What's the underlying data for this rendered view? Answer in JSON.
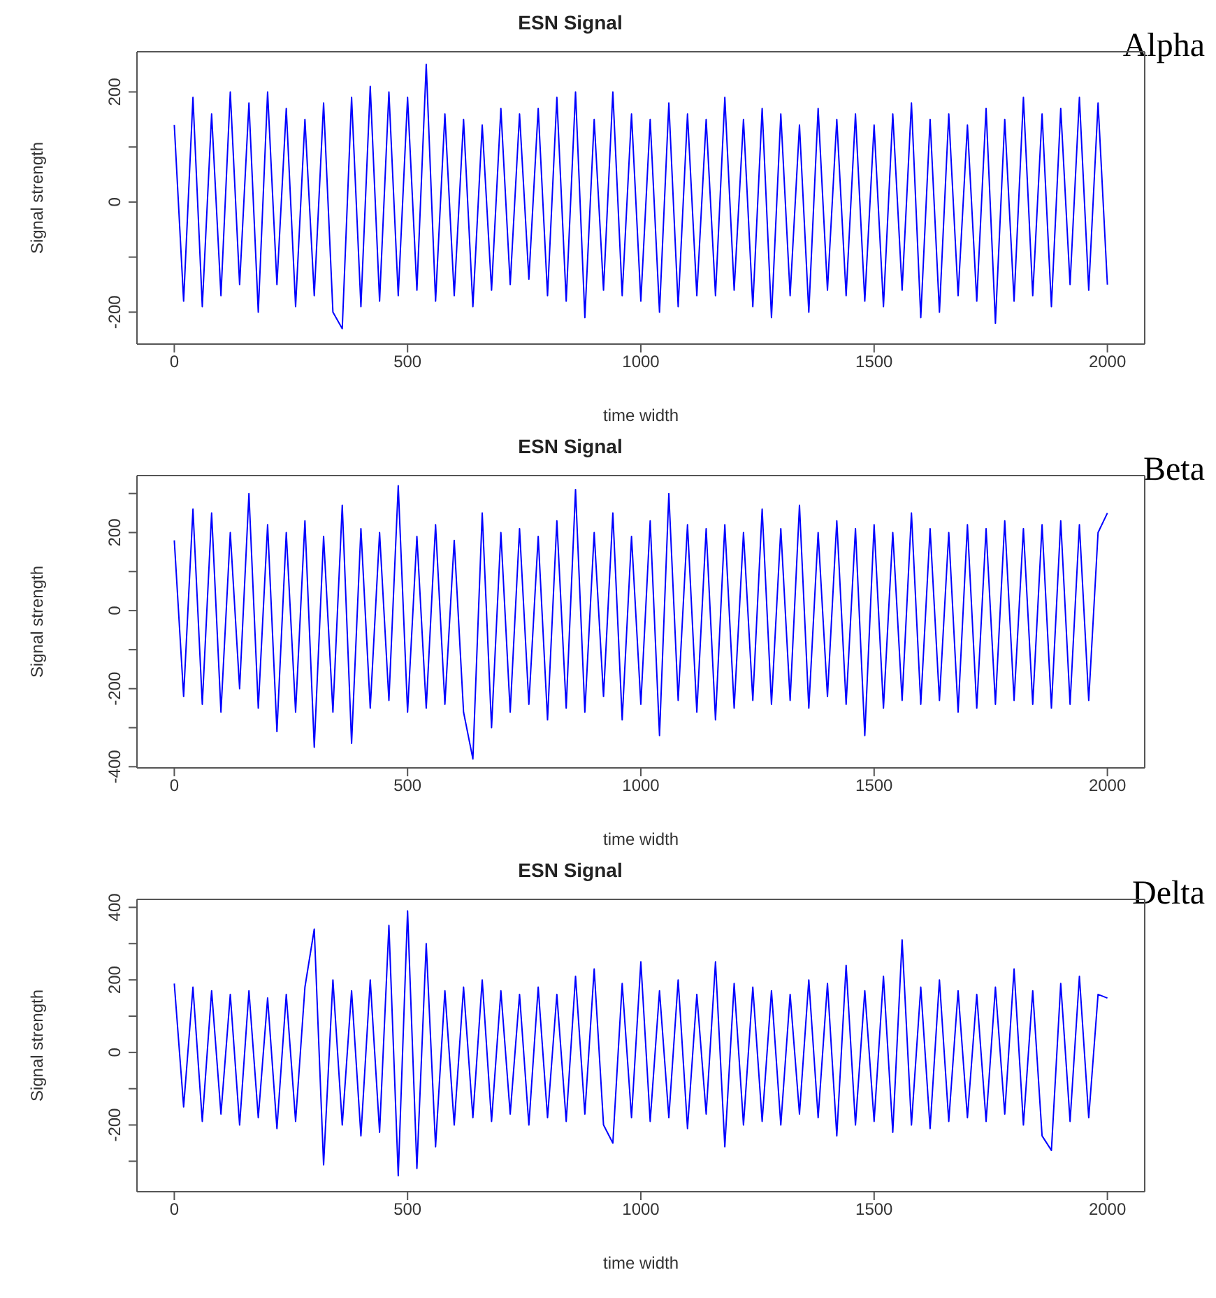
{
  "chart_data": [
    {
      "type": "line",
      "title": "ESN Signal",
      "xlabel": "time width",
      "ylabel": "Signal strength",
      "annotations": [
        "Alpha"
      ],
      "color": "#0000ff",
      "xlim": [
        -80,
        2080
      ],
      "ylim": [
        -258,
        273
      ],
      "xticks": [
        0,
        500,
        1000,
        1500,
        2000
      ],
      "yticks": [
        -200,
        {
          "value": -100,
          "label": null
        },
        0,
        {
          "value": 100,
          "label": null
        },
        200
      ],
      "x": [
        0,
        20,
        40,
        60,
        80,
        100,
        120,
        140,
        160,
        180,
        200,
        220,
        240,
        260,
        280,
        300,
        320,
        340,
        360,
        380,
        400,
        420,
        440,
        460,
        480,
        500,
        520,
        540,
        560,
        580,
        600,
        620,
        640,
        660,
        680,
        700,
        720,
        740,
        760,
        780,
        800,
        820,
        840,
        860,
        880,
        900,
        920,
        940,
        960,
        980,
        1000,
        1020,
        1040,
        1060,
        1080,
        1100,
        1120,
        1140,
        1160,
        1180,
        1200,
        1220,
        1240,
        1260,
        1280,
        1300,
        1320,
        1340,
        1360,
        1380,
        1400,
        1420,
        1440,
        1460,
        1480,
        1500,
        1520,
        1540,
        1560,
        1580,
        1600,
        1620,
        1640,
        1660,
        1680,
        1700,
        1720,
        1740,
        1760,
        1780,
        1800,
        1820,
        1840,
        1860,
        1880,
        1900,
        1920,
        1940,
        1960,
        1980,
        2000
      ],
      "values": [
        140,
        -180,
        190,
        -190,
        160,
        -170,
        200,
        -150,
        180,
        -200,
        200,
        -150,
        170,
        -190,
        150,
        -170,
        180,
        -200,
        -230,
        190,
        -190,
        210,
        -180,
        200,
        -170,
        190,
        -160,
        250,
        -180,
        160,
        -170,
        150,
        -190,
        140,
        -160,
        170,
        -150,
        160,
        -140,
        170,
        -170,
        190,
        -180,
        200,
        -210,
        150,
        -160,
        200,
        -170,
        160,
        -180,
        150,
        -200,
        180,
        -190,
        160,
        -170,
        150,
        -170,
        190,
        -160,
        150,
        -190,
        170,
        -210,
        160,
        -170,
        140,
        -200,
        170,
        -160,
        150,
        -170,
        160,
        -180,
        140,
        -190,
        160,
        -160,
        180,
        -210,
        150,
        -200,
        160,
        -170,
        140,
        -180,
        170,
        -220,
        150,
        -180,
        190,
        -170,
        160,
        -190,
        170,
        -150,
        190,
        -160,
        180,
        -150
      ]
    },
    {
      "type": "line",
      "title": "ESN Signal",
      "xlabel": "time width",
      "ylabel": "Signal strength",
      "annotations": [
        "Beta"
      ],
      "color": "#0000ff",
      "xlim": [
        -80,
        2080
      ],
      "ylim": [
        -403,
        346
      ],
      "xticks": [
        0,
        500,
        1000,
        1500,
        2000
      ],
      "yticks": [
        -400,
        {
          "value": -300,
          "label": null
        },
        -200,
        {
          "value": -100,
          "label": null
        },
        0,
        {
          "value": 100,
          "label": null
        },
        200,
        {
          "value": 300,
          "label": null
        }
      ],
      "x": [
        0,
        20,
        40,
        60,
        80,
        100,
        120,
        140,
        160,
        180,
        200,
        220,
        240,
        260,
        280,
        300,
        320,
        340,
        360,
        380,
        400,
        420,
        440,
        460,
        480,
        500,
        520,
        540,
        560,
        580,
        600,
        620,
        640,
        660,
        680,
        700,
        720,
        740,
        760,
        780,
        800,
        820,
        840,
        860,
        880,
        900,
        920,
        940,
        960,
        980,
        1000,
        1020,
        1040,
        1060,
        1080,
        1100,
        1120,
        1140,
        1160,
        1180,
        1200,
        1220,
        1240,
        1260,
        1280,
        1300,
        1320,
        1340,
        1360,
        1380,
        1400,
        1420,
        1440,
        1460,
        1480,
        1500,
        1520,
        1540,
        1560,
        1580,
        1600,
        1620,
        1640,
        1660,
        1680,
        1700,
        1720,
        1740,
        1760,
        1780,
        1800,
        1820,
        1840,
        1860,
        1880,
        1900,
        1920,
        1940,
        1960,
        1980,
        2000
      ],
      "values": [
        180,
        -220,
        260,
        -240,
        250,
        -260,
        200,
        -200,
        300,
        -250,
        220,
        -310,
        200,
        -260,
        230,
        -350,
        190,
        -260,
        270,
        -340,
        210,
        -250,
        200,
        -230,
        320,
        -260,
        190,
        -250,
        220,
        -240,
        180,
        -260,
        -380,
        250,
        -300,
        200,
        -260,
        210,
        -240,
        190,
        -280,
        230,
        -250,
        310,
        -260,
        200,
        -220,
        250,
        -280,
        190,
        -240,
        230,
        -320,
        300,
        -230,
        220,
        -260,
        210,
        -280,
        220,
        -250,
        200,
        -230,
        260,
        -240,
        210,
        -230,
        270,
        -250,
        200,
        -220,
        230,
        -240,
        210,
        -320,
        220,
        -250,
        200,
        -230,
        250,
        -240,
        210,
        -230,
        200,
        -260,
        220,
        -250,
        210,
        -240,
        230,
        -230,
        210,
        -240,
        220,
        -250,
        230,
        -240,
        220,
        -230,
        200,
        250
      ]
    },
    {
      "type": "line",
      "title": "ESN Signal",
      "xlabel": "time width",
      "ylabel": "Signal strength",
      "annotations": [
        "Delta"
      ],
      "color": "#0000ff",
      "xlim": [
        -80,
        2080
      ],
      "ylim": [
        -384,
        422
      ],
      "xticks": [
        0,
        500,
        1000,
        1500,
        2000
      ],
      "yticks": [
        {
          "value": -300,
          "label": null
        },
        -200,
        {
          "value": -100,
          "label": null
        },
        0,
        {
          "value": 100,
          "label": null
        },
        200,
        {
          "value": 300,
          "label": null
        },
        400
      ],
      "x": [
        0,
        20,
        40,
        60,
        80,
        100,
        120,
        140,
        160,
        180,
        200,
        220,
        240,
        260,
        280,
        300,
        320,
        340,
        360,
        380,
        400,
        420,
        440,
        460,
        480,
        500,
        520,
        540,
        560,
        580,
        600,
        620,
        640,
        660,
        680,
        700,
        720,
        740,
        760,
        780,
        800,
        820,
        840,
        860,
        880,
        900,
        920,
        940,
        960,
        980,
        1000,
        1020,
        1040,
        1060,
        1080,
        1100,
        1120,
        1140,
        1160,
        1180,
        1200,
        1220,
        1240,
        1260,
        1280,
        1300,
        1320,
        1340,
        1360,
        1380,
        1400,
        1420,
        1440,
        1460,
        1480,
        1500,
        1520,
        1540,
        1560,
        1580,
        1600,
        1620,
        1640,
        1660,
        1680,
        1700,
        1720,
        1740,
        1760,
        1780,
        1800,
        1820,
        1840,
        1860,
        1880,
        1900,
        1920,
        1940,
        1960,
        1980,
        2000
      ],
      "values": [
        190,
        -150,
        180,
        -190,
        170,
        -170,
        160,
        -200,
        170,
        -180,
        150,
        -210,
        160,
        -190,
        180,
        340,
        -310,
        200,
        -200,
        170,
        -230,
        200,
        -220,
        350,
        -340,
        390,
        -320,
        300,
        -260,
        170,
        -200,
        180,
        -180,
        200,
        -190,
        170,
        -170,
        160,
        -200,
        180,
        -180,
        160,
        -190,
        210,
        -170,
        230,
        -200,
        -250,
        190,
        -180,
        250,
        -190,
        170,
        -180,
        200,
        -210,
        160,
        -170,
        250,
        -260,
        190,
        -200,
        180,
        -190,
        170,
        -200,
        160,
        -170,
        200,
        -180,
        190,
        -230,
        240,
        -200,
        170,
        -190,
        210,
        -220,
        310,
        -200,
        180,
        -210,
        200,
        -190,
        170,
        -180,
        160,
        -190,
        180,
        -170,
        230,
        -200,
        170,
        -230,
        -270,
        190,
        -190,
        210,
        -180,
        160,
        150
      ]
    }
  ]
}
